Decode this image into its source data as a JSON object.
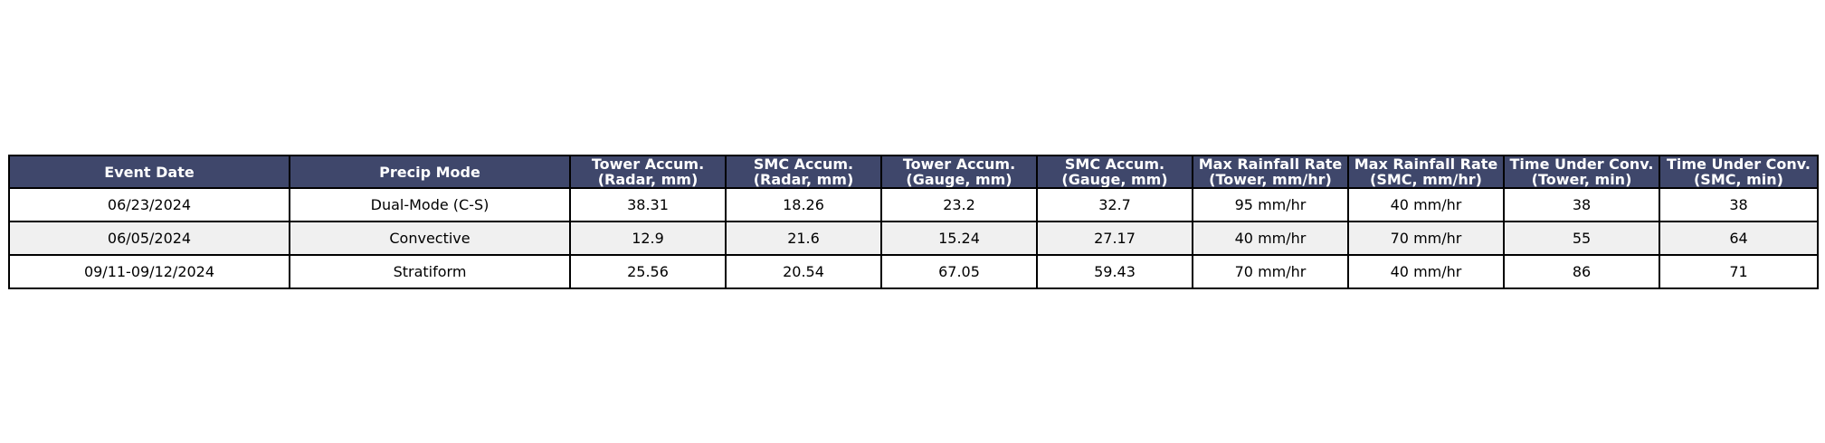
{
  "chart_data": {
    "type": "table",
    "header_bg": "#3f476b",
    "header_text_color": "#ffffff",
    "row_alt_bg": "#f0f0f0",
    "columns": [
      [
        "Event Date"
      ],
      [
        "Precip Mode"
      ],
      [
        "Tower Accum.",
        "(Radar, mm)"
      ],
      [
        "SMC Accum.",
        "(Radar, mm)"
      ],
      [
        "Tower Accum.",
        "(Gauge, mm)"
      ],
      [
        "SMC Accum.",
        "(Gauge, mm)"
      ],
      [
        "Max Rainfall Rate",
        "(Tower, mm/hr)"
      ],
      [
        "Max Rainfall Rate",
        "(SMC, mm/hr)"
      ],
      [
        "Time Under Conv.",
        "(Tower, min)"
      ],
      [
        "Time Under Conv.",
        "(SMC, min)"
      ]
    ],
    "rows": [
      [
        "06/23/2024",
        "Dual-Mode (C-S)",
        "38.31",
        "18.26",
        "23.2",
        "32.7",
        "95 mm/hr",
        "40 mm/hr",
        "38",
        "38"
      ],
      [
        "06/05/2024",
        "Convective",
        "12.9",
        "21.6",
        "15.24",
        "27.17",
        "40 mm/hr",
        "70 mm/hr",
        "55",
        "64"
      ],
      [
        "09/11-09/12/2024",
        "Stratiform",
        "25.56",
        "20.54",
        "67.05",
        "59.43",
        "70 mm/hr",
        "40 mm/hr",
        "86",
        "71"
      ]
    ]
  }
}
